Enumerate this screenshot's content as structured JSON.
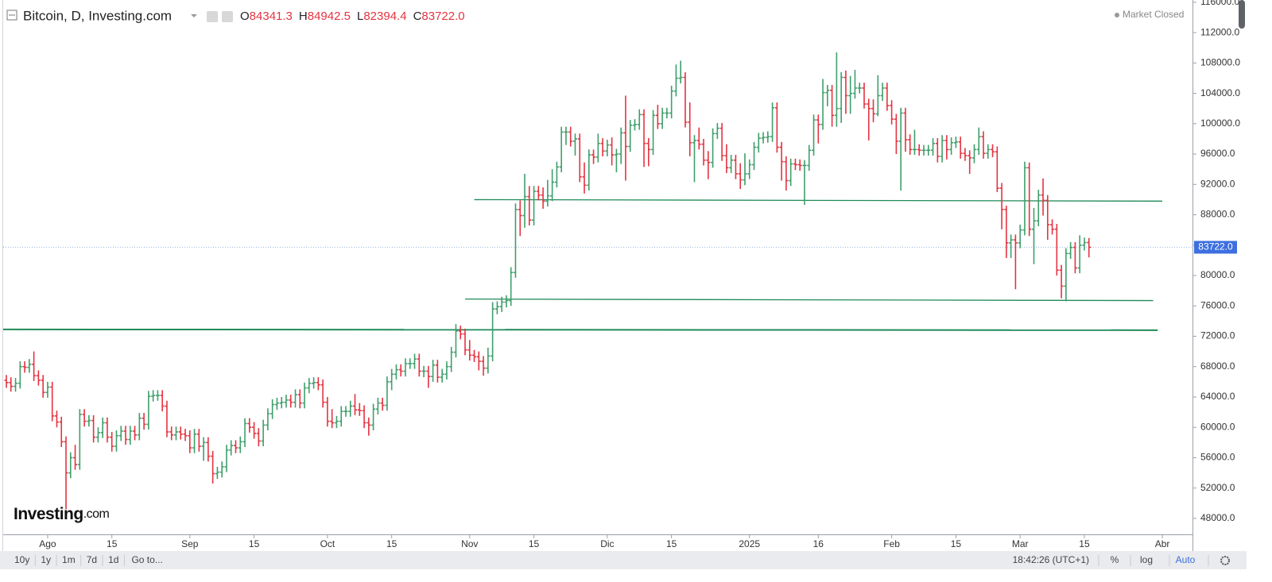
{
  "chart_data": {
    "type": "ohlc",
    "title": "Bitcoin, D, Investing.com",
    "status": "Market Closed",
    "brand": "Investing",
    "brand_suffix": ".com",
    "ohlc_prefixes": [
      "O",
      "H",
      "L",
      "C"
    ],
    "last_close_label": "83722.0",
    "up_color": "#3f9f6c",
    "down_color": "#e53340",
    "line_color": "#1f8a58",
    "price_tag_color": "#3d6fe0",
    "categories": [
      null,
      null,
      null,
      null,
      null,
      null,
      null,
      null,
      null,
      "Ago",
      null,
      null,
      null,
      null,
      null,
      null,
      null,
      null,
      null,
      null,
      null,
      null,
      null,
      "15",
      null,
      null,
      null,
      null,
      null,
      null,
      null,
      null,
      null,
      null,
      null,
      null,
      null,
      null,
      null,
      null,
      "Sep",
      null,
      null,
      null,
      null,
      null,
      null,
      null,
      null,
      null,
      null,
      null,
      null,
      null,
      "15",
      null,
      null,
      null,
      null,
      null,
      null,
      null,
      null,
      null,
      null,
      null,
      null,
      null,
      null,
      null,
      "Oct",
      null,
      null,
      null,
      null,
      null,
      null,
      null,
      null,
      null,
      null,
      null,
      null,
      null,
      "15",
      null,
      null,
      null,
      null,
      null,
      null,
      null,
      null,
      null,
      null,
      null,
      null,
      null,
      null,
      null,
      null,
      "Nov",
      null,
      null,
      null,
      null,
      null,
      null,
      null,
      null,
      null,
      null,
      null,
      null,
      null,
      "15",
      null,
      null,
      null,
      null,
      null,
      null,
      null,
      null,
      null,
      null,
      null,
      null,
      null,
      null,
      null,
      "Dic",
      null,
      null,
      null,
      null,
      null,
      null,
      null,
      null,
      null,
      null,
      null,
      null,
      null,
      "15",
      null,
      null,
      null,
      null,
      null,
      null,
      null,
      null,
      null,
      null,
      null,
      null,
      null,
      null,
      null,
      null,
      "2025",
      null,
      null,
      null,
      null,
      null,
      null,
      null,
      null,
      null,
      null,
      null,
      null,
      null,
      null,
      "16",
      null,
      null,
      null,
      null,
      null,
      null,
      null,
      null,
      null,
      null,
      null,
      null,
      null,
      null,
      null,
      "Feb",
      null,
      null,
      null,
      null,
      null,
      null,
      null,
      null,
      null,
      null,
      null,
      null,
      null,
      "15",
      null,
      null,
      null,
      null,
      null,
      null,
      null,
      null,
      null,
      null,
      null,
      null,
      null,
      "Mar",
      null,
      null,
      null,
      null,
      null,
      null,
      null,
      null,
      null,
      null,
      null,
      null,
      null,
      "15",
      null,
      null,
      null,
      null,
      null,
      null,
      null,
      null,
      null,
      null,
      null,
      null,
      null,
      null,
      null,
      null,
      "Abr"
    ],
    "open": [
      66200,
      65900,
      65400,
      65800,
      68000,
      67900,
      68300,
      66800,
      66200,
      64600,
      65300,
      61500,
      60700,
      58100,
      54000,
      56000,
      55100,
      61700,
      60800,
      60900,
      58700,
      59300,
      60600,
      58700,
      57500,
      58900,
      59500,
      58400,
      59500,
      59000,
      61200,
      60400,
      64100,
      64200,
      64200,
      62800,
      59400,
      59000,
      59400,
      59100,
      58900,
      57300,
      59100,
      57500,
      58000,
      56200,
      53900,
      54100,
      54800,
      57000,
      57600,
      57300,
      58100,
      60500,
      60000,
      59200,
      58200,
      60300,
      61800,
      63000,
      63200,
      63300,
      63600,
      63300,
      64300,
      63200,
      65200,
      65800,
      65900,
      65600,
      63300,
      60800,
      60600,
      60800,
      62100,
      62100,
      62800,
      62300,
      62200,
      60600,
      60300,
      62400,
      63200,
      62900,
      66000,
      67000,
      67600,
      67400,
      68400,
      68400,
      69000,
      67400,
      67400,
      66700,
      68200,
      66600,
      67000,
      68000,
      69900,
      72700,
      72300,
      70200,
      69500,
      69300,
      68700,
      67800,
      69400,
      75600,
      75900,
      76500,
      76700,
      80400,
      88700,
      87900,
      90400,
      87300,
      91100,
      90600,
      89800,
      90500,
      92300,
      94300,
      98900,
      98900,
      97700,
      98000,
      93000,
      91900,
      95900,
      95600,
      97400,
      96400,
      97200,
      95900,
      96000,
      98800,
      97000,
      99800,
      99900,
      101200,
      97400,
      96600,
      101100,
      100000,
      101400,
      101400,
      104300,
      106000,
      106100,
      100200,
      97500,
      97800,
      97300,
      95200,
      94900,
      98700,
      99400,
      95800,
      94200,
      95200,
      93400,
      92600,
      93400,
      94600,
      96900,
      98100,
      98200,
      98300,
      102100,
      96900,
      95000,
      92500,
      94700,
      94600,
      94500,
      94500,
      96500,
      100500,
      99900,
      104100,
      104400,
      101100,
      102000,
      106100,
      103700,
      104000,
      104700,
      104700,
      102600,
      102000,
      101300,
      103700,
      104700,
      102400,
      100600,
      97700,
      101400,
      97900,
      96600,
      96600,
      96500,
      96500,
      96500,
      97400,
      95700,
      97800,
      96600,
      97500,
      97600,
      96100,
      95800,
      95500,
      96600,
      98300,
      96100,
      96600,
      96300,
      91500,
      88700,
      84300,
      84700,
      84300,
      86000,
      94200,
      86100,
      87200,
      90600,
      89900,
      86700,
      86100,
      80700,
      78600,
      82900,
      83700,
      81000,
      84000,
      84341.3,
      null,
      null,
      null,
      null,
      null,
      null,
      null,
      null,
      null,
      null,
      null,
      null,
      null,
      null,
      null,
      null
    ],
    "high": [
      66900,
      66600,
      66500,
      68700,
      68700,
      69000,
      70000,
      67500,
      66900,
      66000,
      66000,
      62200,
      61400,
      58800,
      56700,
      57700,
      62400,
      62400,
      61600,
      61600,
      60000,
      61300,
      61300,
      59400,
      59600,
      60200,
      60200,
      60200,
      60200,
      61900,
      61900,
      64800,
      64900,
      64900,
      64900,
      63500,
      60100,
      60100,
      60100,
      59800,
      59600,
      59800,
      59800,
      58700,
      58700,
      56900,
      54800,
      55500,
      57700,
      58300,
      58300,
      58800,
      61200,
      61200,
      60700,
      59900,
      61000,
      62500,
      63700,
      63900,
      64000,
      64300,
      64300,
      65000,
      65000,
      65900,
      66500,
      66600,
      66600,
      66300,
      64000,
      62400,
      61500,
      62800,
      62800,
      63500,
      64400,
      63200,
      62900,
      61300,
      63100,
      63900,
      63900,
      66700,
      67700,
      68300,
      68300,
      69100,
      69100,
      69700,
      69700,
      68100,
      68100,
      68900,
      68900,
      67700,
      68700,
      70600,
      73600,
      73400,
      73000,
      71500,
      70200,
      70000,
      69400,
      70500,
      76500,
      76600,
      77200,
      77400,
      81100,
      89500,
      89900,
      93400,
      91800,
      91800,
      91800,
      91600,
      92600,
      94000,
      95000,
      99600,
      99600,
      99600,
      98700,
      98700,
      94900,
      96600,
      96600,
      98700,
      98100,
      97900,
      98200,
      96700,
      99500,
      103700,
      100500,
      100600,
      101900,
      101900,
      98100,
      101800,
      102500,
      102100,
      102100,
      105000,
      107800,
      108300,
      106800,
      102800,
      98500,
      99500,
      98000,
      96400,
      99400,
      100100,
      100100,
      97300,
      95900,
      95900,
      94800,
      96100,
      95300,
      97600,
      98800,
      98900,
      99000,
      102800,
      102800,
      97600,
      95700,
      95400,
      95400,
      95300,
      95200,
      97200,
      101200,
      101200,
      105900,
      105100,
      105100,
      109400,
      106800,
      107000,
      106300,
      107100,
      105400,
      105400,
      103300,
      103200,
      106400,
      105400,
      105400,
      103100,
      101300,
      102100,
      102100,
      98600,
      99200,
      97300,
      97200,
      97200,
      98100,
      98100,
      98500,
      98500,
      98200,
      98300,
      98300,
      96800,
      96500,
      97300,
      99500,
      99000,
      97300,
      97300,
      97000,
      92200,
      89200,
      85400,
      85400,
      86700,
      95000,
      94900,
      88900,
      91300,
      92800,
      90600,
      87400,
      86800,
      81400,
      83600,
      84400,
      84400,
      85300,
      85000,
      84942.5,
      null,
      null,
      null,
      null,
      null,
      null,
      null,
      null,
      null,
      null,
      null,
      null,
      null,
      null,
      null,
      null
    ],
    "low": [
      65200,
      64700,
      64700,
      65100,
      67200,
      67200,
      66100,
      65500,
      63900,
      63900,
      60800,
      60000,
      57400,
      49200,
      53300,
      54400,
      54400,
      60100,
      60100,
      58000,
      58000,
      58600,
      58000,
      56800,
      56800,
      58200,
      57700,
      57700,
      58300,
      58300,
      59700,
      59700,
      63400,
      63500,
      62100,
      58700,
      58300,
      58300,
      58400,
      58200,
      56600,
      56600,
      56800,
      55600,
      55500,
      52600,
      53200,
      53400,
      54100,
      56300,
      56600,
      56600,
      57400,
      59300,
      58500,
      57500,
      57500,
      59600,
      61100,
      62300,
      62500,
      62600,
      62600,
      62600,
      62500,
      62500,
      64500,
      65100,
      64900,
      62600,
      60100,
      59900,
      59900,
      60100,
      61400,
      61400,
      61600,
      61500,
      59900,
      58900,
      59600,
      61700,
      62200,
      62200,
      64900,
      66300,
      66700,
      66700,
      67700,
      67700,
      66700,
      66600,
      65200,
      66000,
      65900,
      65900,
      66300,
      67300,
      69200,
      71600,
      69500,
      68800,
      68600,
      67500,
      66800,
      67100,
      68700,
      74900,
      75200,
      75800,
      76000,
      79700,
      85200,
      86300,
      86600,
      86600,
      89900,
      88800,
      89100,
      89800,
      91600,
      93600,
      97200,
      97000,
      95800,
      92300,
      90800,
      91200,
      94700,
      94900,
      95700,
      95700,
      94500,
      93600,
      94700,
      92500,
      96300,
      99100,
      99200,
      94300,
      94400,
      95900,
      99300,
      99300,
      100700,
      100700,
      103600,
      105300,
      99500,
      95700,
      92300,
      96600,
      94500,
      92700,
      94200,
      98000,
      95100,
      93500,
      93500,
      92700,
      91400,
      91900,
      92700,
      93900,
      96200,
      97400,
      97500,
      97600,
      96200,
      92500,
      91200,
      91800,
      93900,
      93800,
      89300,
      93800,
      95800,
      97400,
      99200,
      102300,
      99600,
      99600,
      100100,
      101300,
      101300,
      103300,
      104000,
      102000,
      97800,
      100200,
      101000,
      103000,
      101700,
      99900,
      96000,
      91200,
      96300,
      95900,
      95900,
      95800,
      95800,
      95800,
      95800,
      94900,
      94900,
      95300,
      95900,
      96800,
      95400,
      95100,
      93400,
      94800,
      95900,
      95400,
      95400,
      95600,
      91000,
      86100,
      82300,
      82300,
      78200,
      83600,
      85300,
      85200,
      81500,
      86500,
      87900,
      84700,
      85400,
      80000,
      77000,
      76600,
      82200,
      80300,
      80300,
      83300,
      82394.4,
      null,
      null,
      null,
      null,
      null,
      null,
      null,
      null,
      null,
      null,
      null,
      null,
      null,
      null,
      null,
      null
    ],
    "close": [
      65900,
      65400,
      65800,
      68000,
      67900,
      68300,
      66800,
      66200,
      64600,
      65300,
      61500,
      60700,
      58100,
      54000,
      56000,
      55100,
      61700,
      60800,
      60900,
      58700,
      59300,
      60600,
      58700,
      57500,
      58900,
      59500,
      58400,
      59500,
      59000,
      61200,
      60400,
      64100,
      64200,
      64200,
      62800,
      59400,
      59000,
      59400,
      59100,
      58900,
      57300,
      59100,
      57500,
      58000,
      56200,
      53900,
      54100,
      54800,
      57000,
      57600,
      57300,
      58100,
      60500,
      60000,
      59200,
      58200,
      60300,
      61800,
      63000,
      63200,
      63300,
      63600,
      63300,
      64300,
      63200,
      65200,
      65800,
      65900,
      65600,
      63300,
      60800,
      60600,
      60800,
      62100,
      62100,
      62800,
      62300,
      62200,
      60600,
      60300,
      62400,
      63200,
      62900,
      66000,
      67000,
      67600,
      67400,
      68400,
      68400,
      69000,
      67400,
      67400,
      66700,
      68200,
      66600,
      67000,
      68000,
      69900,
      72700,
      72300,
      70200,
      69500,
      69300,
      68700,
      67800,
      69400,
      75600,
      75900,
      76500,
      76700,
      80400,
      88700,
      87900,
      90400,
      87300,
      91100,
      90600,
      89800,
      90500,
      92300,
      94300,
      98900,
      98900,
      97700,
      98000,
      93000,
      91900,
      95900,
      95600,
      97400,
      96400,
      97200,
      95900,
      96000,
      98800,
      97000,
      99800,
      99900,
      101200,
      97400,
      96600,
      101100,
      100000,
      101400,
      101400,
      104300,
      106000,
      106100,
      100200,
      97500,
      97800,
      97300,
      95200,
      94900,
      98700,
      99400,
      95800,
      94200,
      95200,
      93400,
      92600,
      93400,
      94600,
      96900,
      98100,
      98200,
      98300,
      102100,
      96900,
      95000,
      92500,
      94700,
      94600,
      94500,
      94500,
      96500,
      100500,
      99900,
      104100,
      104400,
      101100,
      102000,
      106100,
      103700,
      104000,
      104700,
      104700,
      102600,
      102000,
      101300,
      103700,
      104700,
      102400,
      100600,
      97700,
      101400,
      97900,
      96600,
      96600,
      96500,
      96500,
      96500,
      97400,
      95700,
      97800,
      96600,
      97500,
      97600,
      96100,
      95800,
      95500,
      96600,
      98300,
      96100,
      96600,
      96300,
      91500,
      88700,
      84300,
      84700,
      84300,
      86000,
      94200,
      86100,
      87200,
      90600,
      89900,
      86700,
      86100,
      80700,
      78600,
      82900,
      83700,
      81000,
      84000,
      84341.3,
      83722,
      null,
      null,
      null,
      null,
      null,
      null,
      null,
      null,
      null,
      null,
      null,
      null,
      null,
      null,
      null,
      null
    ],
    "trend_lines": [
      {
        "x": [
          102,
          252
        ],
        "y": [
          90000,
          89800
        ]
      },
      {
        "x": [
          100,
          250
        ],
        "y": [
          76900,
          76700
        ]
      },
      {
        "x": [
          -1,
          251
        ],
        "y": [
          72900,
          72800
        ]
      }
    ],
    "ylim": [
      45900,
      116300
    ],
    "yticks": [
      {
        "value": 48000,
        "label": "48000.0"
      },
      {
        "value": 52000,
        "label": "52000.0"
      },
      {
        "value": 56000,
        "label": "56000.0"
      },
      {
        "value": 60000,
        "label": "60000.0"
      },
      {
        "value": 64000,
        "label": "64000.0"
      },
      {
        "value": 68000,
        "label": "68000.0"
      },
      {
        "value": 72000,
        "label": "72000.0"
      },
      {
        "value": 76000,
        "label": "76000.0"
      },
      {
        "value": 80000,
        "label": "80000.0"
      },
      {
        "value": 84000,
        "label": "84000.0"
      },
      {
        "value": 88000,
        "label": "88000.0"
      },
      {
        "value": 92000,
        "label": "92000.0"
      },
      {
        "value": 96000,
        "label": "96000.0"
      },
      {
        "value": 100000,
        "label": "100000.0"
      },
      {
        "value": 104000,
        "label": "104000.0"
      },
      {
        "value": 108000,
        "label": "108000.0"
      },
      {
        "value": 112000,
        "label": "112000.0"
      },
      {
        "value": 116000,
        "label": "116000.0"
      }
    ]
  },
  "toolbar": {
    "ranges": [
      "10y",
      "1y",
      "1m",
      "7d",
      "1d"
    ],
    "goto": "Go to...",
    "clock": "18:42:26 (UTC+1)",
    "options": [
      "%",
      "log",
      "Auto"
    ]
  }
}
